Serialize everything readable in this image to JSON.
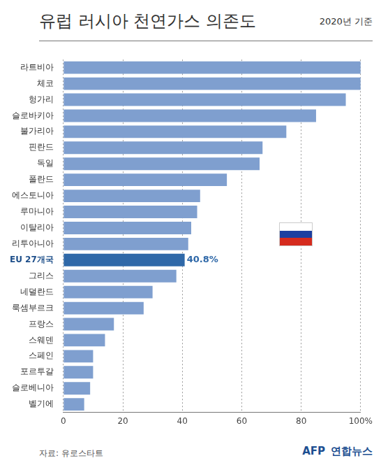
{
  "chart_data": {
    "type": "bar",
    "orientation": "horizontal",
    "title": "유럽 러시아 천연가스 의존도",
    "subtitle": "2020년 기준",
    "source": "자료: 유로스타트",
    "credit": [
      "AFP",
      "연합뉴스"
    ],
    "categories": [
      "라트비아",
      "체코",
      "헝가리",
      "슬로바키아",
      "불가리아",
      "핀란드",
      "독일",
      "폴란드",
      "에스토니아",
      "루마니아",
      "이탈리아",
      "리투아니아",
      "EU 27개국",
      "그리스",
      "네덜란드",
      "룩셈부르크",
      "프랑스",
      "스웨덴",
      "스페인",
      "포르투갈",
      "슬로베니아",
      "벨기에"
    ],
    "values": [
      100,
      100,
      95,
      85,
      75,
      67,
      66,
      55,
      46,
      45,
      43,
      42,
      40.8,
      38,
      30,
      27,
      17,
      14,
      10,
      10,
      9,
      7
    ],
    "value_labels": [
      null,
      null,
      null,
      null,
      null,
      null,
      null,
      null,
      null,
      null,
      null,
      null,
      "40.8%",
      null,
      null,
      null,
      null,
      null,
      null,
      null,
      null,
      null
    ],
    "colors": [
      "#7f9fcf",
      "#7f9fcf",
      "#7f9fcf",
      "#7f9fcf",
      "#7f9fcf",
      "#7f9fcf",
      "#7f9fcf",
      "#7f9fcf",
      "#7f9fcf",
      "#7f9fcf",
      "#7f9fcf",
      "#7f9fcf",
      "#2f68a8",
      "#7f9fcf",
      "#7f9fcf",
      "#7f9fcf",
      "#7f9fcf",
      "#7f9fcf",
      "#7f9fcf",
      "#7f9fcf",
      "#7f9fcf",
      "#7f9fcf"
    ],
    "xlim": [
      0,
      100
    ],
    "xticks": [
      0,
      20,
      40,
      60,
      80,
      {
        "value": 100,
        "label": "100%"
      }
    ],
    "grid": true,
    "data_labels": true
  }
}
